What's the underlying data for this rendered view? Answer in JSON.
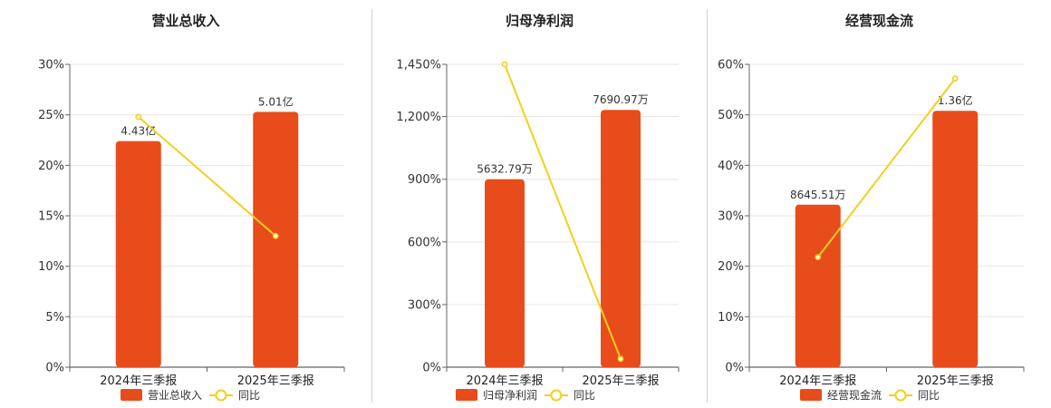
{
  "colors": {
    "bar": "#e84c1a",
    "line": "#f2cf1f",
    "grid": "#e6e6e6",
    "axis": "#666666"
  },
  "charts": [
    {
      "type": "bar+line",
      "title": "营业总收入",
      "categories": [
        "2024年三季报",
        "2025年三季报"
      ],
      "bar_series": {
        "name": "营业总收入",
        "values": [
          22.4,
          25.3
        ],
        "labels": [
          "4.43亿",
          "5.01亿"
        ]
      },
      "line_series": {
        "name": "同比",
        "values": [
          24.8,
          13.0
        ]
      },
      "y_ticks": [
        "0%",
        "5%",
        "10%",
        "15%",
        "20%",
        "25%",
        "30%"
      ],
      "ylim": [
        0,
        30
      ]
    },
    {
      "type": "bar+line",
      "title": "归母净利润",
      "categories": [
        "2024年三季报",
        "2025年三季报"
      ],
      "bar_series": {
        "name": "归母净利润",
        "values": [
          900,
          1232
        ],
        "labels": [
          "5632.79万",
          "7690.97万"
        ]
      },
      "line_series": {
        "name": "同比",
        "values": [
          1450,
          40
        ]
      },
      "y_ticks": [
        "0%",
        "300%",
        "600%",
        "900%",
        "1,200%",
        "1,450%"
      ],
      "y_tick_values": [
        0,
        300,
        600,
        900,
        1200,
        1450
      ],
      "ylim": [
        0,
        1450
      ]
    },
    {
      "type": "bar+line",
      "title": "经营现金流",
      "categories": [
        "2024年三季报",
        "2025年三季报"
      ],
      "bar_series": {
        "name": "经营现金流",
        "values": [
          32.2,
          50.8
        ],
        "labels": [
          "8645.51万",
          "1.36亿"
        ]
      },
      "line_series": {
        "name": "同比",
        "values": [
          21.8,
          57.2
        ]
      },
      "y_ticks": [
        "0%",
        "10%",
        "20%",
        "30%",
        "40%",
        "50%",
        "60%"
      ],
      "ylim": [
        0,
        60
      ]
    }
  ]
}
